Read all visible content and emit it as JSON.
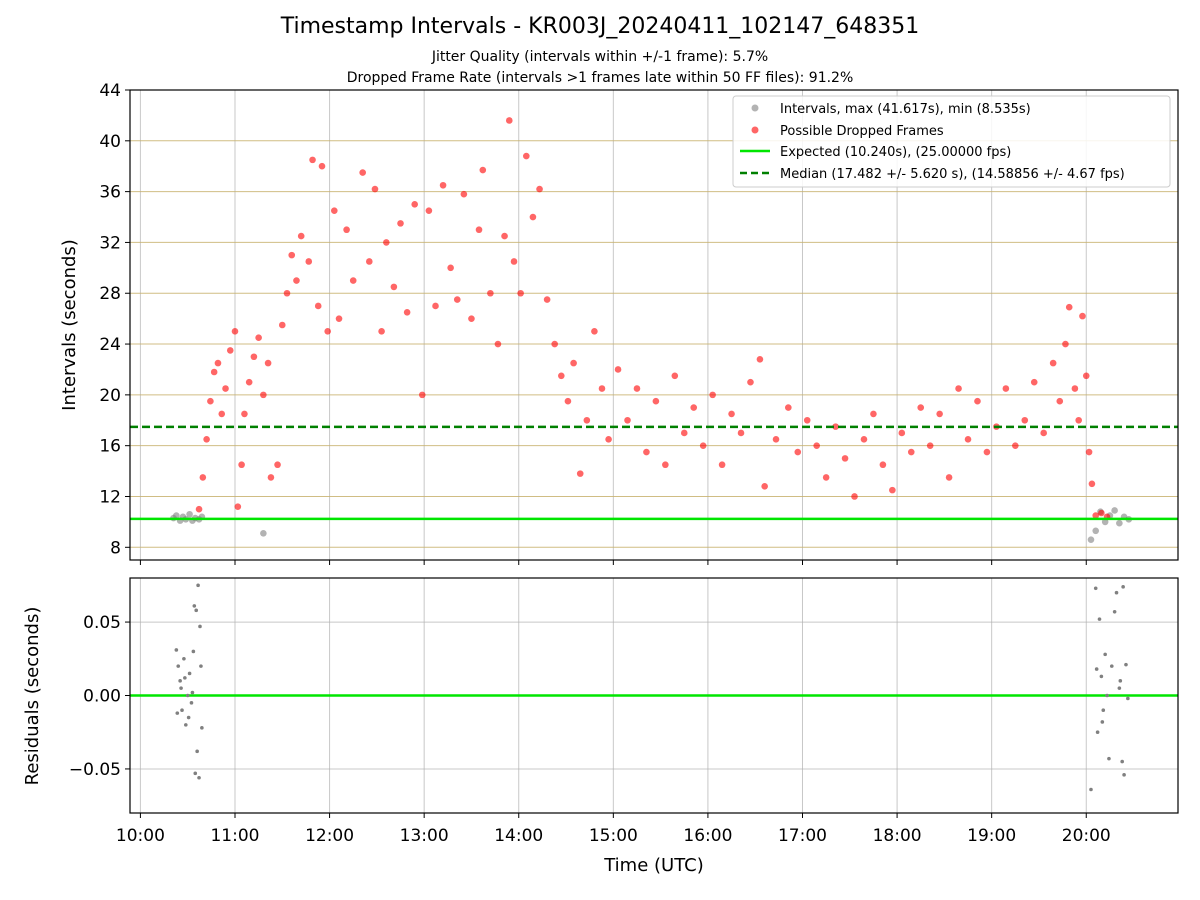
{
  "chart_data": {
    "title": "Timestamp Intervals - KR003J_20240411_102147_648351",
    "subtitle_1": "Jitter Quality (intervals within +/-1 frame): 5.7%",
    "subtitle_2": "Dropped Frame Rate (intervals >1 frames late within 50 FF files): 91.2%",
    "top_panel": {
      "type": "scatter",
      "ylabel": "Intervals (seconds)",
      "ylim": [
        7,
        44
      ],
      "yticks": [
        8,
        12,
        16,
        20,
        24,
        28,
        32,
        36,
        40,
        44
      ],
      "xlim_hours": [
        9.89,
        20.97
      ],
      "legend_position": "top-right",
      "legend": [
        "Intervals, max (41.617s), min (8.535s)",
        "Possible Dropped Frames",
        "Expected (10.240s), (25.00000 fps)",
        "Median (17.482 +/- 5.620 s), (14.58856 +/- 4.67 fps)"
      ],
      "expected_line": 10.24,
      "median_line": 17.482,
      "series": [
        {
          "role": "normal intervals",
          "color": "#808080",
          "points": [
            [
              10.35,
              10.3
            ],
            [
              10.38,
              10.5
            ],
            [
              10.42,
              10.1
            ],
            [
              10.45,
              10.4
            ],
            [
              10.48,
              10.2
            ],
            [
              10.52,
              10.6
            ],
            [
              10.55,
              10.1
            ],
            [
              10.58,
              10.3
            ],
            [
              10.62,
              10.2
            ],
            [
              10.65,
              10.4
            ],
            [
              11.3,
              9.1
            ],
            [
              20.05,
              8.6
            ],
            [
              20.1,
              9.3
            ],
            [
              20.15,
              10.8
            ],
            [
              20.2,
              10.0
            ],
            [
              20.25,
              10.5
            ],
            [
              20.3,
              10.9
            ],
            [
              20.35,
              9.9
            ],
            [
              20.4,
              10.4
            ],
            [
              20.45,
              10.2
            ]
          ]
        },
        {
          "role": "possible dropped frames",
          "color": "#ff0000",
          "points": [
            [
              10.62,
              11.0
            ],
            [
              10.66,
              13.5
            ],
            [
              10.7,
              16.5
            ],
            [
              10.74,
              19.5
            ],
            [
              10.78,
              21.8
            ],
            [
              10.82,
              22.5
            ],
            [
              10.86,
              18.5
            ],
            [
              10.9,
              20.5
            ],
            [
              10.95,
              23.5
            ],
            [
              11.0,
              25.0
            ],
            [
              11.03,
              11.2
            ],
            [
              11.07,
              14.5
            ],
            [
              11.1,
              18.5
            ],
            [
              11.15,
              21.0
            ],
            [
              11.2,
              23.0
            ],
            [
              11.25,
              24.5
            ],
            [
              11.3,
              20.0
            ],
            [
              11.35,
              22.5
            ],
            [
              11.38,
              13.5
            ],
            [
              11.45,
              14.5
            ],
            [
              11.5,
              25.5
            ],
            [
              11.55,
              28.0
            ],
            [
              11.6,
              31.0
            ],
            [
              11.65,
              29.0
            ],
            [
              11.7,
              32.5
            ],
            [
              11.78,
              30.5
            ],
            [
              11.82,
              38.5
            ],
            [
              11.88,
              27.0
            ],
            [
              11.92,
              38.0
            ],
            [
              11.98,
              25.0
            ],
            [
              12.05,
              34.5
            ],
            [
              12.1,
              26.0
            ],
            [
              12.18,
              33.0
            ],
            [
              12.25,
              29.0
            ],
            [
              12.35,
              37.5
            ],
            [
              12.42,
              30.5
            ],
            [
              12.48,
              36.2
            ],
            [
              12.55,
              25.0
            ],
            [
              12.6,
              32.0
            ],
            [
              12.68,
              28.5
            ],
            [
              12.75,
              33.5
            ],
            [
              12.82,
              26.5
            ],
            [
              12.9,
              35.0
            ],
            [
              12.98,
              20.0
            ],
            [
              13.05,
              34.5
            ],
            [
              13.12,
              27.0
            ],
            [
              13.2,
              36.5
            ],
            [
              13.28,
              30.0
            ],
            [
              13.35,
              27.5
            ],
            [
              13.42,
              35.8
            ],
            [
              13.5,
              26.0
            ],
            [
              13.58,
              33.0
            ],
            [
              13.62,
              37.7
            ],
            [
              13.7,
              28.0
            ],
            [
              13.78,
              24.0
            ],
            [
              13.85,
              32.5
            ],
            [
              13.9,
              41.6
            ],
            [
              13.95,
              30.5
            ],
            [
              14.02,
              28.0
            ],
            [
              14.08,
              38.8
            ],
            [
              14.15,
              34.0
            ],
            [
              14.22,
              36.2
            ],
            [
              14.3,
              27.5
            ],
            [
              14.38,
              24.0
            ],
            [
              14.45,
              21.5
            ],
            [
              14.52,
              19.5
            ],
            [
              14.58,
              22.5
            ],
            [
              14.65,
              13.8
            ],
            [
              14.72,
              18.0
            ],
            [
              14.8,
              25.0
            ],
            [
              14.88,
              20.5
            ],
            [
              14.95,
              16.5
            ],
            [
              15.05,
              22.0
            ],
            [
              15.15,
              18.0
            ],
            [
              15.25,
              20.5
            ],
            [
              15.35,
              15.5
            ],
            [
              15.45,
              19.5
            ],
            [
              15.55,
              14.5
            ],
            [
              15.65,
              21.5
            ],
            [
              15.75,
              17.0
            ],
            [
              15.85,
              19.0
            ],
            [
              15.95,
              16.0
            ],
            [
              16.05,
              20.0
            ],
            [
              16.15,
              14.5
            ],
            [
              16.25,
              18.5
            ],
            [
              16.35,
              17.0
            ],
            [
              16.45,
              21.0
            ],
            [
              16.55,
              22.8
            ],
            [
              16.6,
              12.8
            ],
            [
              16.72,
              16.5
            ],
            [
              16.85,
              19.0
            ],
            [
              16.95,
              15.5
            ],
            [
              17.05,
              18.0
            ],
            [
              17.15,
              16.0
            ],
            [
              17.25,
              13.5
            ],
            [
              17.35,
              17.5
            ],
            [
              17.45,
              15.0
            ],
            [
              17.55,
              12.0
            ],
            [
              17.65,
              16.5
            ],
            [
              17.75,
              18.5
            ],
            [
              17.85,
              14.5
            ],
            [
              17.95,
              12.5
            ],
            [
              18.05,
              17.0
            ],
            [
              18.15,
              15.5
            ],
            [
              18.25,
              19.0
            ],
            [
              18.35,
              16.0
            ],
            [
              18.45,
              18.5
            ],
            [
              18.55,
              13.5
            ],
            [
              18.65,
              20.5
            ],
            [
              18.75,
              16.5
            ],
            [
              18.85,
              19.5
            ],
            [
              18.95,
              15.5
            ],
            [
              19.05,
              17.5
            ],
            [
              19.15,
              20.5
            ],
            [
              19.25,
              16.0
            ],
            [
              19.35,
              18.0
            ],
            [
              19.45,
              21.0
            ],
            [
              19.55,
              17.0
            ],
            [
              19.65,
              22.5
            ],
            [
              19.72,
              19.5
            ],
            [
              19.78,
              24.0
            ],
            [
              19.82,
              26.9
            ],
            [
              19.88,
              20.5
            ],
            [
              19.92,
              18.0
            ],
            [
              19.96,
              26.2
            ],
            [
              20.0,
              21.5
            ],
            [
              20.03,
              15.5
            ],
            [
              20.06,
              13.0
            ],
            [
              20.1,
              10.5
            ],
            [
              20.16,
              10.7
            ],
            [
              20.22,
              10.4
            ]
          ]
        }
      ]
    },
    "bottom_panel": {
      "type": "scatter",
      "ylabel": "Residuals (seconds)",
      "ylim": [
        -0.08,
        0.08
      ],
      "yticks": [
        0.05,
        0.0,
        -0.05
      ],
      "ytick_labels": [
        "0.05",
        "0.00",
        "−0.05"
      ],
      "xlabel": "Time (UTC)",
      "xticks": [
        "10:00",
        "11:00",
        "12:00",
        "13:00",
        "14:00",
        "15:00",
        "16:00",
        "17:00",
        "18:00",
        "19:00",
        "20:00"
      ],
      "zero_line_color": "#00e600",
      "point_color": "#808080",
      "points": [
        [
          10.38,
          0.031
        ],
        [
          10.4,
          0.02
        ],
        [
          10.42,
          0.01
        ],
        [
          10.44,
          -0.01
        ],
        [
          10.46,
          0.025
        ],
        [
          10.48,
          -0.02
        ],
        [
          10.5,
          0.0
        ],
        [
          10.52,
          0.015
        ],
        [
          10.54,
          -0.005
        ],
        [
          10.56,
          0.03
        ],
        [
          10.57,
          0.061
        ],
        [
          10.58,
          -0.053
        ],
        [
          10.59,
          0.058
        ],
        [
          10.6,
          -0.038
        ],
        [
          10.61,
          0.075
        ],
        [
          10.62,
          -0.056
        ],
        [
          10.63,
          0.047
        ],
        [
          10.64,
          0.02
        ],
        [
          10.65,
          -0.022
        ],
        [
          10.39,
          -0.012
        ],
        [
          10.43,
          0.005
        ],
        [
          10.47,
          0.012
        ],
        [
          10.51,
          -0.015
        ],
        [
          10.55,
          0.002
        ],
        [
          20.05,
          -0.064
        ],
        [
          20.1,
          0.073
        ],
        [
          20.12,
          -0.025
        ],
        [
          20.14,
          0.052
        ],
        [
          20.16,
          0.013
        ],
        [
          20.18,
          -0.01
        ],
        [
          20.2,
          0.028
        ],
        [
          20.22,
          0.0
        ],
        [
          20.24,
          -0.043
        ],
        [
          20.3,
          0.057
        ],
        [
          20.32,
          0.07
        ],
        [
          20.35,
          0.005
        ],
        [
          20.38,
          -0.045
        ],
        [
          20.39,
          0.074
        ],
        [
          20.4,
          -0.054
        ],
        [
          20.42,
          0.021
        ],
        [
          20.44,
          -0.002
        ],
        [
          20.11,
          0.018
        ],
        [
          20.17,
          -0.018
        ],
        [
          20.27,
          0.02
        ],
        [
          20.36,
          0.01
        ]
      ]
    }
  }
}
